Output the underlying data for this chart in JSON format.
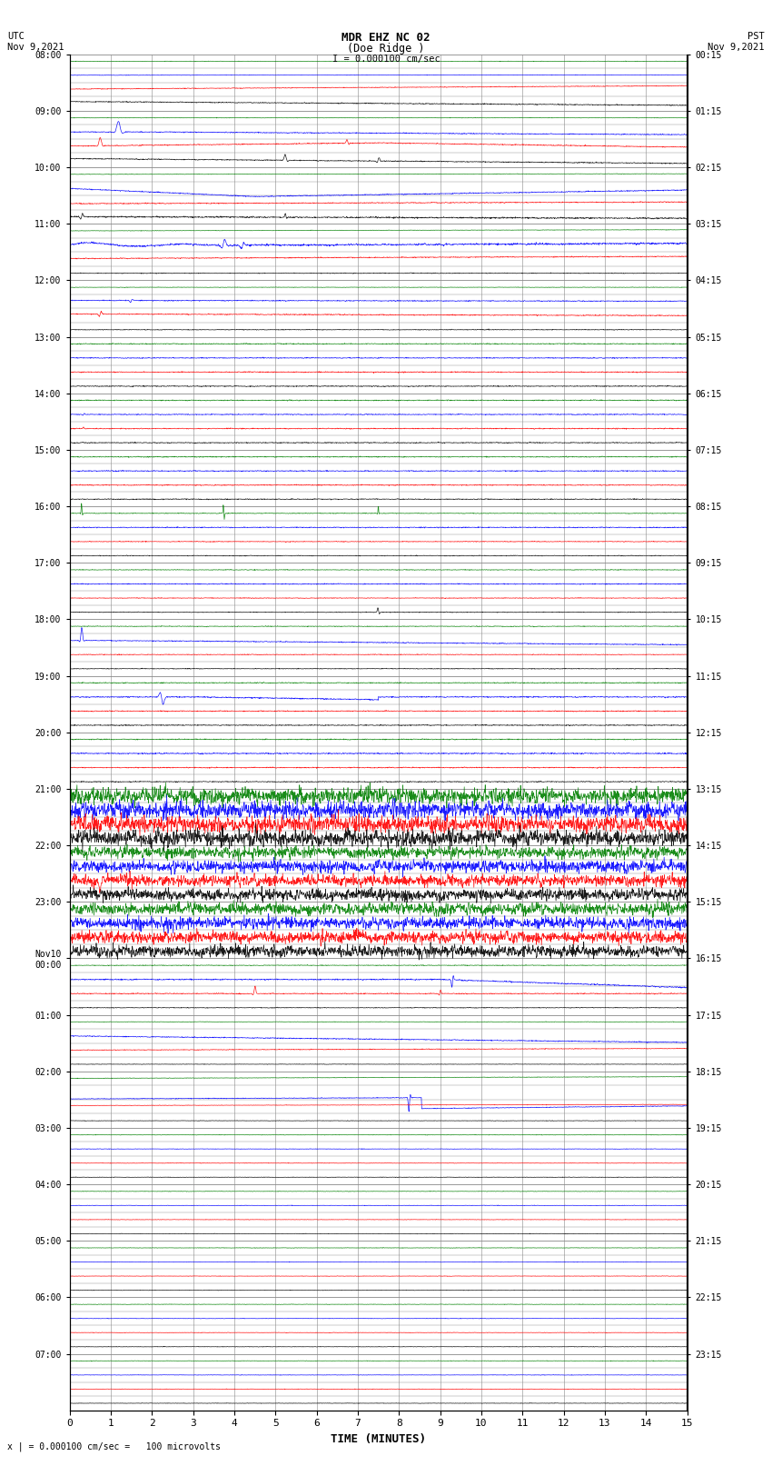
{
  "title_line1": "MDR EHZ NC 02",
  "title_line2": "(Doe Ridge )",
  "scale_label": "I = 0.000100 cm/sec",
  "left_date_label": "UTC\nNov 9,2021",
  "right_date_label": "PST\nNov 9,2021",
  "xlabel": "TIME (MINUTES)",
  "bottom_label": "x | = 0.000100 cm/sec =   100 microvolts",
  "utc_labels": [
    "08:00",
    "09:00",
    "10:00",
    "11:00",
    "12:00",
    "13:00",
    "14:00",
    "15:00",
    "16:00",
    "17:00",
    "18:00",
    "19:00",
    "20:00",
    "21:00",
    "22:00",
    "23:00",
    "Nov10\n00:00",
    "01:00",
    "02:00",
    "03:00",
    "04:00",
    "05:00",
    "06:00",
    "07:00"
  ],
  "pst_labels": [
    "00:15",
    "01:15",
    "02:15",
    "03:15",
    "04:15",
    "05:15",
    "06:15",
    "07:15",
    "08:15",
    "09:15",
    "10:15",
    "11:15",
    "12:15",
    "13:15",
    "14:15",
    "15:15",
    "16:15",
    "17:15",
    "18:15",
    "19:15",
    "20:15",
    "21:15",
    "22:15",
    "23:15"
  ],
  "num_hours": 24,
  "traces_per_hour": 4,
  "minutes_per_row": 15,
  "colors": [
    "green",
    "blue",
    "red",
    "black"
  ],
  "bg_color": "white",
  "grid_color": "#888888",
  "line_width": 0.5
}
